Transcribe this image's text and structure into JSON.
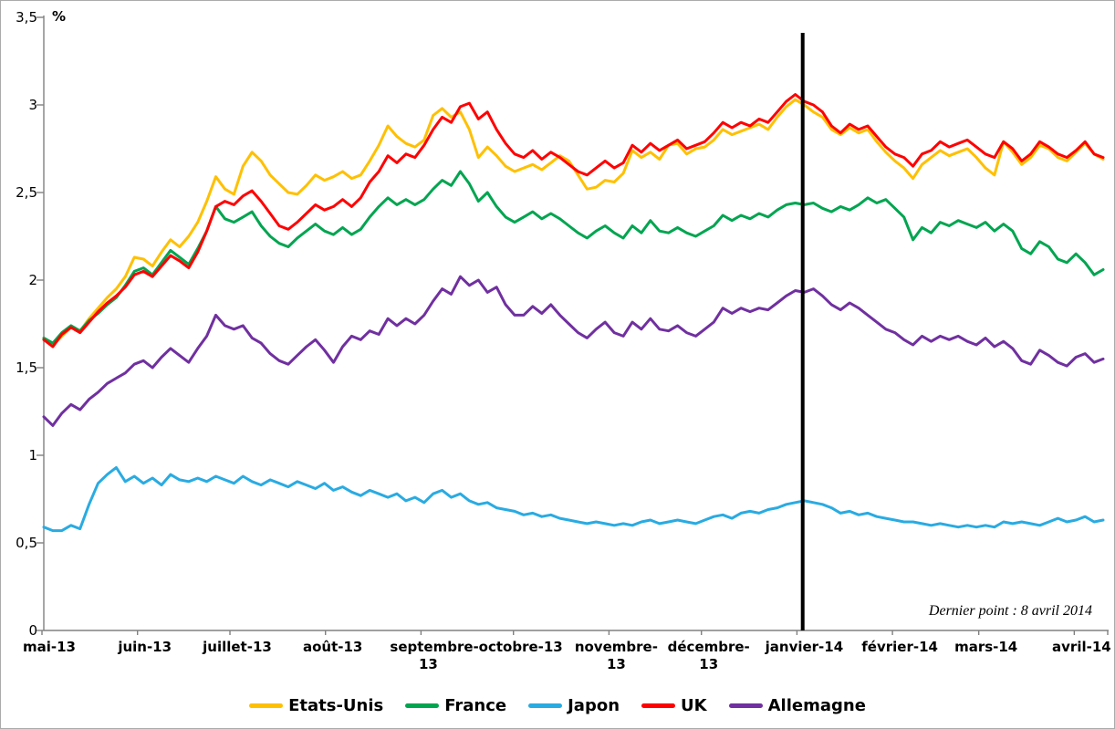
{
  "chart_data": {
    "type": "line",
    "title": "",
    "unit_label": "%",
    "annotation": "Dernier point : 8 avril 2014",
    "ylim": [
      0,
      3.5
    ],
    "grid": false,
    "legend_position": "bottom",
    "axis_color": "#808080",
    "y_ticks": [
      {
        "value": 0,
        "label": "0"
      },
      {
        "value": 0.5,
        "label": "0,5"
      },
      {
        "value": 1,
        "label": "1"
      },
      {
        "value": 1.5,
        "label": "1,5"
      },
      {
        "value": 2,
        "label": "2"
      },
      {
        "value": 2.5,
        "label": "2,5"
      },
      {
        "value": 3,
        "label": "3"
      },
      {
        "value": 3.5,
        "label": "3,5"
      }
    ],
    "x_total_days": 342,
    "x_ticks": [
      {
        "label": "mai-13",
        "day": 0
      },
      {
        "label": "juin-13",
        "day": 31
      },
      {
        "label": "juillet-13",
        "day": 61
      },
      {
        "label": "août-13",
        "day": 92
      },
      {
        "label": "septembre-13",
        "day": 123
      },
      {
        "label": "octobre-13",
        "day": 153
      },
      {
        "label": "novembre-13",
        "day": 184
      },
      {
        "label": "décembre-13",
        "day": 214
      },
      {
        "label": "janvier-14",
        "day": 245
      },
      {
        "label": "février-14",
        "day": 276
      },
      {
        "label": "mars-14",
        "day": 304
      },
      {
        "label": "avril-14",
        "day": 335
      }
    ],
    "marker_line": {
      "day": 245,
      "color": "#000000"
    },
    "series": [
      {
        "name": "Etats-Unis",
        "color": "#FFC000",
        "values": [
          1.66,
          1.63,
          1.68,
          1.73,
          1.71,
          1.78,
          1.84,
          1.9,
          1.95,
          2.02,
          2.13,
          2.12,
          2.08,
          2.16,
          2.23,
          2.19,
          2.25,
          2.33,
          2.45,
          2.59,
          2.52,
          2.49,
          2.65,
          2.73,
          2.68,
          2.6,
          2.55,
          2.5,
          2.49,
          2.54,
          2.6,
          2.57,
          2.59,
          2.62,
          2.58,
          2.6,
          2.68,
          2.77,
          2.88,
          2.82,
          2.78,
          2.76,
          2.8,
          2.94,
          2.98,
          2.93,
          2.96,
          2.86,
          2.7,
          2.76,
          2.71,
          2.65,
          2.62,
          2.64,
          2.66,
          2.63,
          2.67,
          2.71,
          2.68,
          2.6,
          2.52,
          2.53,
          2.57,
          2.56,
          2.61,
          2.74,
          2.7,
          2.73,
          2.69,
          2.77,
          2.78,
          2.72,
          2.75,
          2.76,
          2.8,
          2.86,
          2.83,
          2.85,
          2.87,
          2.89,
          2.86,
          2.93,
          2.99,
          3.03,
          3.0,
          2.96,
          2.93,
          2.86,
          2.83,
          2.87,
          2.84,
          2.86,
          2.79,
          2.73,
          2.68,
          2.64,
          2.58,
          2.66,
          2.7,
          2.74,
          2.71,
          2.73,
          2.75,
          2.7,
          2.64,
          2.6,
          2.79,
          2.73,
          2.66,
          2.7,
          2.77,
          2.75,
          2.7,
          2.68,
          2.73,
          2.78,
          2.72,
          2.69
        ]
      },
      {
        "name": "France",
        "color": "#00A550",
        "values": [
          1.67,
          1.64,
          1.7,
          1.74,
          1.71,
          1.77,
          1.81,
          1.86,
          1.9,
          1.97,
          2.05,
          2.07,
          2.03,
          2.1,
          2.17,
          2.13,
          2.09,
          2.18,
          2.28,
          2.42,
          2.35,
          2.33,
          2.36,
          2.39,
          2.31,
          2.25,
          2.21,
          2.19,
          2.24,
          2.28,
          2.32,
          2.28,
          2.26,
          2.3,
          2.26,
          2.29,
          2.36,
          2.42,
          2.47,
          2.43,
          2.46,
          2.43,
          2.46,
          2.52,
          2.57,
          2.54,
          2.62,
          2.55,
          2.45,
          2.5,
          2.42,
          2.36,
          2.33,
          2.36,
          2.39,
          2.35,
          2.38,
          2.35,
          2.31,
          2.27,
          2.24,
          2.28,
          2.31,
          2.27,
          2.24,
          2.31,
          2.27,
          2.34,
          2.28,
          2.27,
          2.3,
          2.27,
          2.25,
          2.28,
          2.31,
          2.37,
          2.34,
          2.37,
          2.35,
          2.38,
          2.36,
          2.4,
          2.43,
          2.44,
          2.43,
          2.44,
          2.41,
          2.39,
          2.42,
          2.4,
          2.43,
          2.47,
          2.44,
          2.46,
          2.41,
          2.36,
          2.23,
          2.3,
          2.27,
          2.33,
          2.31,
          2.34,
          2.32,
          2.3,
          2.33,
          2.28,
          2.32,
          2.28,
          2.18,
          2.15,
          2.22,
          2.19,
          2.12,
          2.1,
          2.15,
          2.1,
          2.03,
          2.06
        ]
      },
      {
        "name": "Japon",
        "color": "#29ABE2",
        "values": [
          0.59,
          0.57,
          0.57,
          0.6,
          0.58,
          0.72,
          0.84,
          0.89,
          0.93,
          0.85,
          0.88,
          0.84,
          0.87,
          0.83,
          0.89,
          0.86,
          0.85,
          0.87,
          0.85,
          0.88,
          0.86,
          0.84,
          0.88,
          0.85,
          0.83,
          0.86,
          0.84,
          0.82,
          0.85,
          0.83,
          0.81,
          0.84,
          0.8,
          0.82,
          0.79,
          0.77,
          0.8,
          0.78,
          0.76,
          0.78,
          0.74,
          0.76,
          0.73,
          0.78,
          0.8,
          0.76,
          0.78,
          0.74,
          0.72,
          0.73,
          0.7,
          0.69,
          0.68,
          0.66,
          0.67,
          0.65,
          0.66,
          0.64,
          0.63,
          0.62,
          0.61,
          0.62,
          0.61,
          0.6,
          0.61,
          0.6,
          0.62,
          0.63,
          0.61,
          0.62,
          0.63,
          0.62,
          0.61,
          0.63,
          0.65,
          0.66,
          0.64,
          0.67,
          0.68,
          0.67,
          0.69,
          0.7,
          0.72,
          0.73,
          0.74,
          0.73,
          0.72,
          0.7,
          0.67,
          0.68,
          0.66,
          0.67,
          0.65,
          0.64,
          0.63,
          0.62,
          0.62,
          0.61,
          0.6,
          0.61,
          0.6,
          0.59,
          0.6,
          0.59,
          0.6,
          0.59,
          0.62,
          0.61,
          0.62,
          0.61,
          0.6,
          0.62,
          0.64,
          0.62,
          0.63,
          0.65,
          0.62,
          0.63
        ]
      },
      {
        "name": "UK",
        "color": "#FF0000",
        "values": [
          1.66,
          1.62,
          1.69,
          1.73,
          1.7,
          1.76,
          1.82,
          1.87,
          1.91,
          1.96,
          2.03,
          2.05,
          2.02,
          2.08,
          2.14,
          2.11,
          2.07,
          2.16,
          2.28,
          2.42,
          2.45,
          2.43,
          2.48,
          2.51,
          2.45,
          2.38,
          2.31,
          2.29,
          2.33,
          2.38,
          2.43,
          2.4,
          2.42,
          2.46,
          2.42,
          2.47,
          2.56,
          2.62,
          2.71,
          2.67,
          2.72,
          2.7,
          2.77,
          2.86,
          2.93,
          2.9,
          2.99,
          3.01,
          2.92,
          2.96,
          2.86,
          2.78,
          2.72,
          2.7,
          2.74,
          2.69,
          2.73,
          2.7,
          2.66,
          2.62,
          2.6,
          2.64,
          2.68,
          2.64,
          2.67,
          2.77,
          2.73,
          2.78,
          2.74,
          2.77,
          2.8,
          2.75,
          2.77,
          2.79,
          2.84,
          2.9,
          2.87,
          2.9,
          2.88,
          2.92,
          2.9,
          2.96,
          3.02,
          3.06,
          3.02,
          3.0,
          2.96,
          2.88,
          2.84,
          2.89,
          2.86,
          2.88,
          2.82,
          2.76,
          2.72,
          2.7,
          2.65,
          2.72,
          2.74,
          2.79,
          2.76,
          2.78,
          2.8,
          2.76,
          2.72,
          2.7,
          2.79,
          2.75,
          2.68,
          2.72,
          2.79,
          2.76,
          2.72,
          2.7,
          2.74,
          2.79,
          2.72,
          2.7
        ]
      },
      {
        "name": "Allemagne",
        "color": "#7030A0",
        "values": [
          1.22,
          1.17,
          1.24,
          1.29,
          1.26,
          1.32,
          1.36,
          1.41,
          1.44,
          1.47,
          1.52,
          1.54,
          1.5,
          1.56,
          1.61,
          1.57,
          1.53,
          1.61,
          1.68,
          1.8,
          1.74,
          1.72,
          1.74,
          1.67,
          1.64,
          1.58,
          1.54,
          1.52,
          1.57,
          1.62,
          1.66,
          1.6,
          1.53,
          1.62,
          1.68,
          1.66,
          1.71,
          1.69,
          1.78,
          1.74,
          1.78,
          1.75,
          1.8,
          1.88,
          1.95,
          1.92,
          2.02,
          1.97,
          2.0,
          1.93,
          1.96,
          1.86,
          1.8,
          1.8,
          1.85,
          1.81,
          1.86,
          1.8,
          1.75,
          1.7,
          1.67,
          1.72,
          1.76,
          1.7,
          1.68,
          1.76,
          1.72,
          1.78,
          1.72,
          1.71,
          1.74,
          1.7,
          1.68,
          1.72,
          1.76,
          1.84,
          1.81,
          1.84,
          1.82,
          1.84,
          1.83,
          1.87,
          1.91,
          1.94,
          1.93,
          1.95,
          1.91,
          1.86,
          1.83,
          1.87,
          1.84,
          1.8,
          1.76,
          1.72,
          1.7,
          1.66,
          1.63,
          1.68,
          1.65,
          1.68,
          1.66,
          1.68,
          1.65,
          1.63,
          1.67,
          1.62,
          1.65,
          1.61,
          1.54,
          1.52,
          1.6,
          1.57,
          1.53,
          1.51,
          1.56,
          1.58,
          1.53,
          1.55
        ]
      }
    ]
  }
}
